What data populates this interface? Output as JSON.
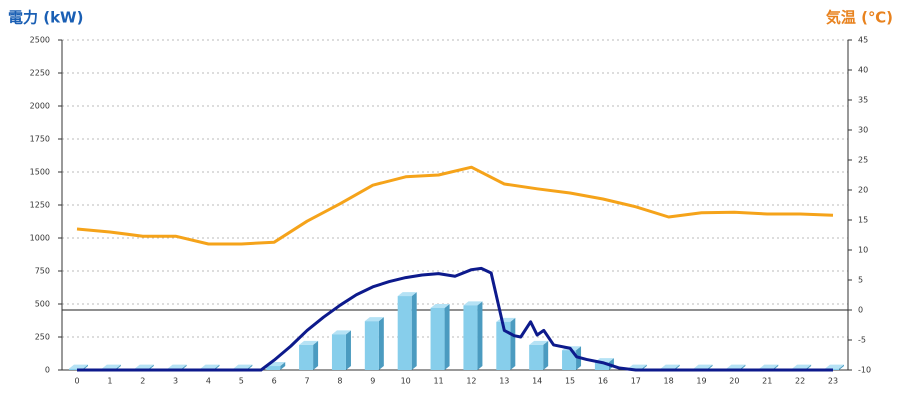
{
  "chart_data": {
    "type": "bar",
    "y_title": "電力 (kW)",
    "y2_title": "気温 (℃)",
    "categories": [
      "0",
      "1",
      "2",
      "3",
      "4",
      "5",
      "6",
      "7",
      "8",
      "9",
      "10",
      "11",
      "12",
      "13",
      "14",
      "15",
      "16",
      "17",
      "18",
      "19",
      "20",
      "21",
      "22",
      "23"
    ],
    "ylim": [
      0,
      2500
    ],
    "yticks": [
      0,
      250,
      500,
      750,
      1000,
      1250,
      1500,
      1750,
      2000,
      2250,
      2500
    ],
    "y2lim": [
      -10,
      45
    ],
    "y2ticks": [
      -10,
      -5,
      0,
      5,
      10,
      15,
      20,
      25,
      30,
      35,
      40,
      45
    ],
    "grid": true,
    "series": [
      {
        "type": "bar",
        "color": "#87ceeb",
        "values": [
          10,
          10,
          10,
          10,
          10,
          10,
          30,
          190,
          270,
          370,
          560,
          470,
          490,
          365,
          190,
          150,
          60,
          10,
          10,
          10,
          10,
          10,
          10,
          10
        ]
      },
      {
        "type": "line",
        "color": "#0d1a8c",
        "x": [
          0,
          1,
          2,
          3,
          4,
          5,
          5.6,
          6,
          6.5,
          7,
          7.5,
          8,
          8.5,
          9,
          9.5,
          10,
          10.5,
          11,
          11.5,
          12,
          12.3,
          12.6,
          13,
          13.3,
          13.5,
          13.8,
          14,
          14.2,
          14.5,
          15,
          15.2,
          15.5,
          16,
          16.5,
          17,
          18,
          19,
          20,
          21,
          22,
          23
        ],
        "values": [
          0,
          0,
          0,
          0,
          0,
          0,
          0,
          75,
          180,
          300,
          400,
          490,
          570,
          630,
          670,
          700,
          720,
          730,
          710,
          760,
          770,
          735,
          300,
          260,
          250,
          365,
          265,
          300,
          190,
          165,
          100,
          80,
          55,
          15,
          0,
          0,
          0,
          0,
          0,
          0,
          0
        ]
      },
      {
        "type": "line",
        "color": "#f5a31a",
        "axis": "y2",
        "values": [
          13.5,
          13,
          12.3,
          12.3,
          11,
          11,
          11.3,
          14.8,
          17.7,
          20.8,
          22.2,
          22.5,
          23.8,
          21,
          20.2,
          19.5,
          18.5,
          17.2,
          15.5,
          16.2,
          16.3,
          16,
          16,
          15.8
        ]
      }
    ]
  }
}
